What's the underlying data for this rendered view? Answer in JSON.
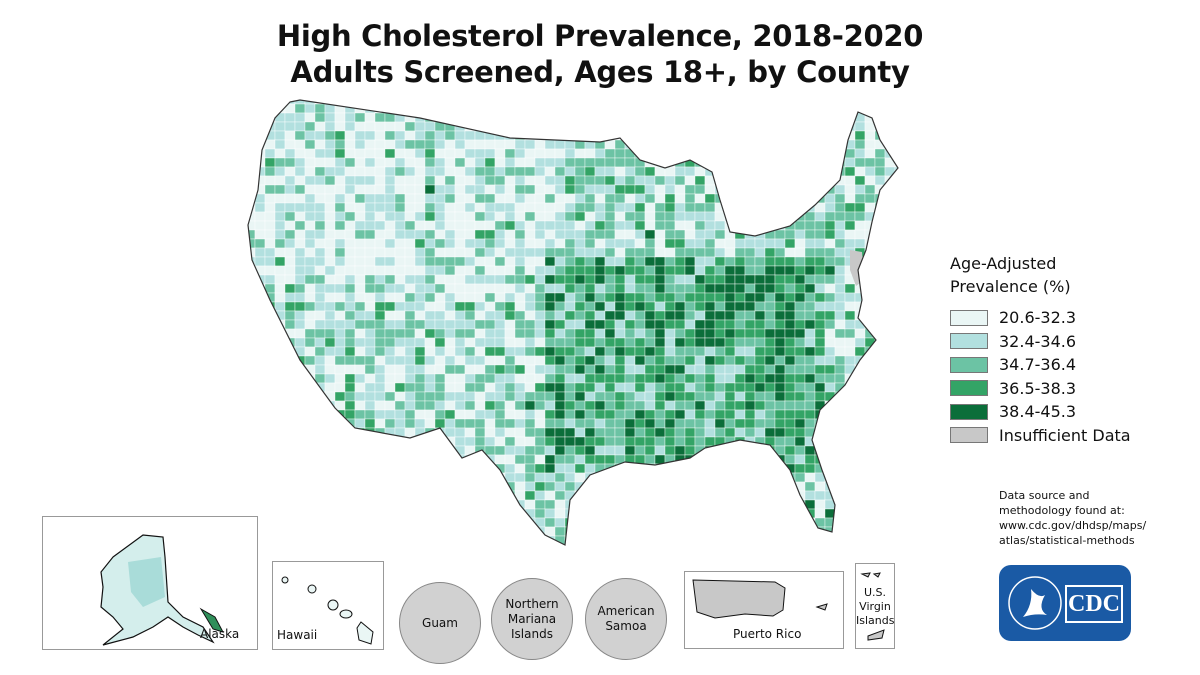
{
  "title": {
    "line1": "High Cholesterol Prevalence, 2018-2020",
    "line2": "Adults Screened, Ages 18+, by County"
  },
  "legend": {
    "title_line1": "Age-Adjusted",
    "title_line2": "Prevalence (%)",
    "items": [
      {
        "label": "20.6-32.3",
        "color": "#eaf6f5"
      },
      {
        "label": "32.4-34.6",
        "color": "#b2e0df"
      },
      {
        "label": "34.7-36.4",
        "color": "#6cc3a4"
      },
      {
        "label": "36.5-38.3",
        "color": "#33a466"
      },
      {
        "label": "38.4-45.3",
        "color": "#0b6e3a"
      },
      {
        "label": "Insufficient Data",
        "color": "#c8c8c8"
      }
    ]
  },
  "source": {
    "line1": "Data source and",
    "line2": "methodology found at:",
    "line3": "www.cdc.gov/dhdsp/maps/",
    "line4": "atlas/statistical-methods"
  },
  "insets": {
    "alaska": "Alaska",
    "hawaii": "Hawaii",
    "guam": "Guam",
    "northern_mariana": "Northern Mariana Islands",
    "american_samoa": "American Samoa",
    "puerto_rico": "Puerto Rico",
    "virgin_islands": "U.S. Virgin Islands"
  },
  "logo": {
    "text": "CDC"
  }
}
